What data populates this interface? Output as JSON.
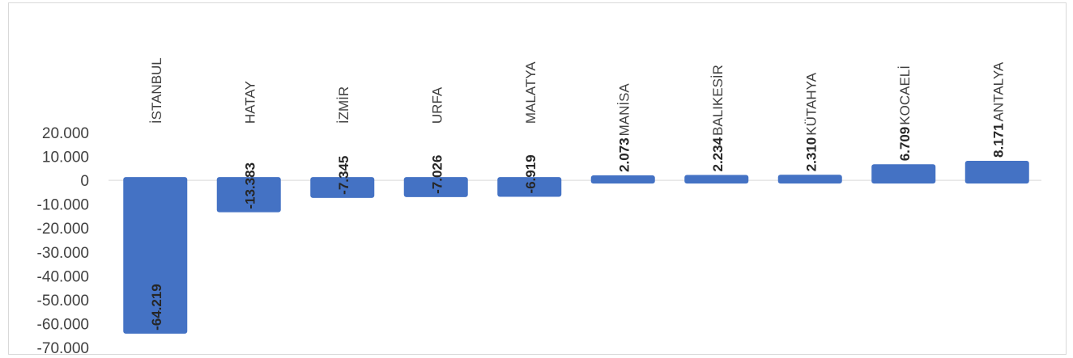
{
  "chart_data": {
    "type": "bar",
    "categories": [
      "İSTANBUL",
      "HATAY",
      "İZMİR",
      "URFA",
      "MALATYA",
      "MANİSA",
      "BALIKESİR",
      "KÜTAHYA",
      "KOCAELİ",
      "ANTALYA"
    ],
    "values": [
      -64219,
      -13383,
      -7345,
      -7026,
      -6919,
      2073,
      2234,
      2310,
      6709,
      8171
    ],
    "value_labels": [
      "-64.219",
      "-13.383",
      "-7.345",
      "-7.026",
      "-6.919",
      "2.073",
      "2.234",
      "2.310",
      "6.709",
      "8.171"
    ],
    "ylim": [
      -70000,
      20000
    ],
    "y_ticks": [
      20000,
      10000,
      0,
      -10000,
      -20000,
      -30000,
      -40000,
      -50000,
      -60000,
      -70000
    ],
    "y_tick_labels": [
      "20.000",
      "10.000",
      "0",
      "-10.000",
      "-20.000",
      "-30.000",
      "-40.000",
      "-50.000",
      "-60.000",
      "-70.000"
    ],
    "title": "",
    "xlabel": "",
    "ylabel": "",
    "grid": false,
    "bar_color": "#4472C4",
    "axis_color": "#d9d9d9"
  }
}
